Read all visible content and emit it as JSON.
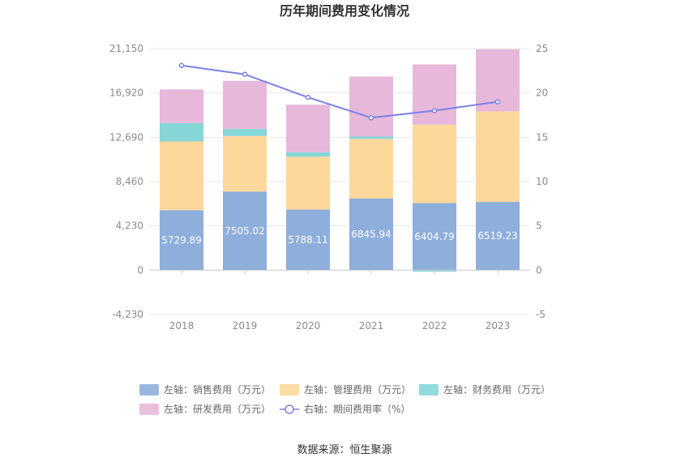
{
  "chart_data": {
    "type": "bar",
    "title": "历年期间费用变化情况",
    "source": "数据来源：恒生聚源",
    "categories": [
      "2018",
      "2019",
      "2020",
      "2021",
      "2022",
      "2023"
    ],
    "left_axis": {
      "ticks": [
        "21,150",
        "16,920",
        "12,690",
        "8,460",
        "4,230",
        "0",
        "-4,230"
      ],
      "range": [
        -4230,
        21150
      ]
    },
    "right_axis": {
      "ticks": [
        "25",
        "20",
        "15",
        "10",
        "5",
        "0",
        "-5"
      ],
      "range": [
        -5,
        25
      ]
    },
    "series": [
      {
        "name": "左轴：销售费用（万元）",
        "kind": "bar",
        "color": "#8eaedb",
        "values": [
          5729.89,
          7505.02,
          5788.11,
          6845.94,
          6404.79,
          6519.23
        ],
        "labels": [
          "5729.89",
          "7505.02",
          "5788.11",
          "6845.94",
          "6404.79",
          "6519.23"
        ]
      },
      {
        "name": "左轴：管理费用（万元）",
        "kind": "bar",
        "color": "#fed89b",
        "values": [
          6560,
          5300,
          5050,
          5690,
          7480,
          8640
        ]
      },
      {
        "name": "左轴：财务费用（万元）",
        "kind": "bar",
        "color": "#86d6d8",
        "values": [
          1760,
          680,
          430,
          220,
          -150,
          0
        ]
      },
      {
        "name": "左轴：研发费用（万元）",
        "kind": "bar",
        "color": "#e7b8da",
        "values": [
          3200,
          4590,
          4530,
          5730,
          5760,
          5920
        ]
      },
      {
        "name": "右轴：期间费用率（%）",
        "kind": "line",
        "color": "#7b82e6",
        "values": [
          23.1,
          22.1,
          19.5,
          17.2,
          18.0,
          19.0
        ]
      }
    ]
  }
}
